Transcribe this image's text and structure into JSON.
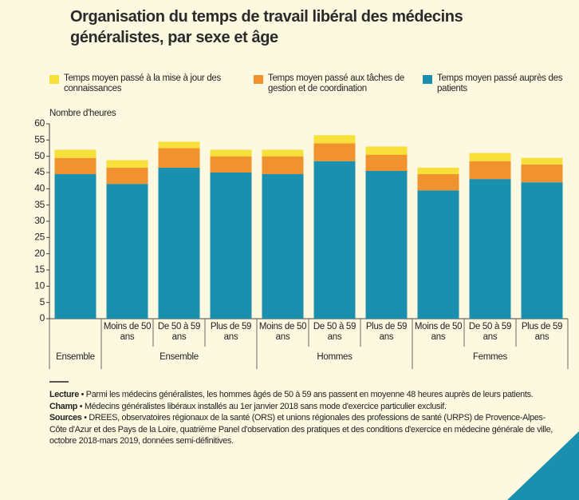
{
  "chart_data": {
    "type": "stacked_bar",
    "title": "Organisation du temps de travail libéral des médecins généralistes, par sexe et âge",
    "ylabel": "Nombre d'heures",
    "groups": [
      {
        "label": "Ensemble",
        "categories": [
          null
        ]
      },
      {
        "label": "Ensemble",
        "categories": [
          "Moins de 50 ans",
          "De 50 à 59 ans",
          "Plus de 59 ans"
        ]
      },
      {
        "label": "Hommes",
        "categories": [
          "Moins de 50 ans",
          "De 50 à 59 ans",
          "Plus de 59 ans"
        ]
      },
      {
        "label": "Femmes",
        "categories": [
          "Moins de 50 ans",
          "De 50 à 59 ans",
          "Plus de 59 ans"
        ]
      }
    ],
    "series": [
      {
        "name": "Temps moyen passé auprès des patients",
        "color": "#1a8fae",
        "values": [
          44.5,
          41.5,
          46.5,
          45,
          44.5,
          48.5,
          45.5,
          39.5,
          43,
          42
        ]
      },
      {
        "name": "Temps moyen passé aux tâches de gestion et de coordination",
        "color": "#f0922d",
        "values": [
          5,
          5,
          6,
          5,
          5.5,
          5.5,
          5,
          5,
          5.5,
          5.5
        ]
      },
      {
        "name": "Temps moyen passé à la mise à jour des connaissances",
        "color": "#f7e03a",
        "values": [
          2.5,
          2.3,
          2,
          2,
          2,
          2.5,
          2.5,
          2,
          2.5,
          2
        ]
      }
    ],
    "ylim": [
      0,
      60
    ],
    "yticks": [
      0,
      5,
      10,
      15,
      20,
      25,
      30,
      35,
      40,
      45,
      50,
      55,
      60
    ],
    "grid": false,
    "notes": [
      {
        "label": "Lecture",
        "text": "• Parmi les médecins généralistes, les hommes âgés de 50 à 59 ans passent en moyenne 48 heures auprès de leurs patients."
      },
      {
        "label": "Champ",
        "text": "• Médecins généralistes libéraux installés au 1er janvier 2018 sans mode d'exercice particulier exclusif."
      },
      {
        "label": "Sources",
        "text": "• DREES, observatoires régionaux de la santé (ORS) et unions régionales des professions de santé (URPS) de Provence-Alpes-Côte d'Azur et des Pays de la Loire, quatrième Panel d'observation des pratiques et des conditions d'exercice en médecine générale de ville, octobre 2018-mars 2019, données semi-définitives."
      }
    ]
  }
}
